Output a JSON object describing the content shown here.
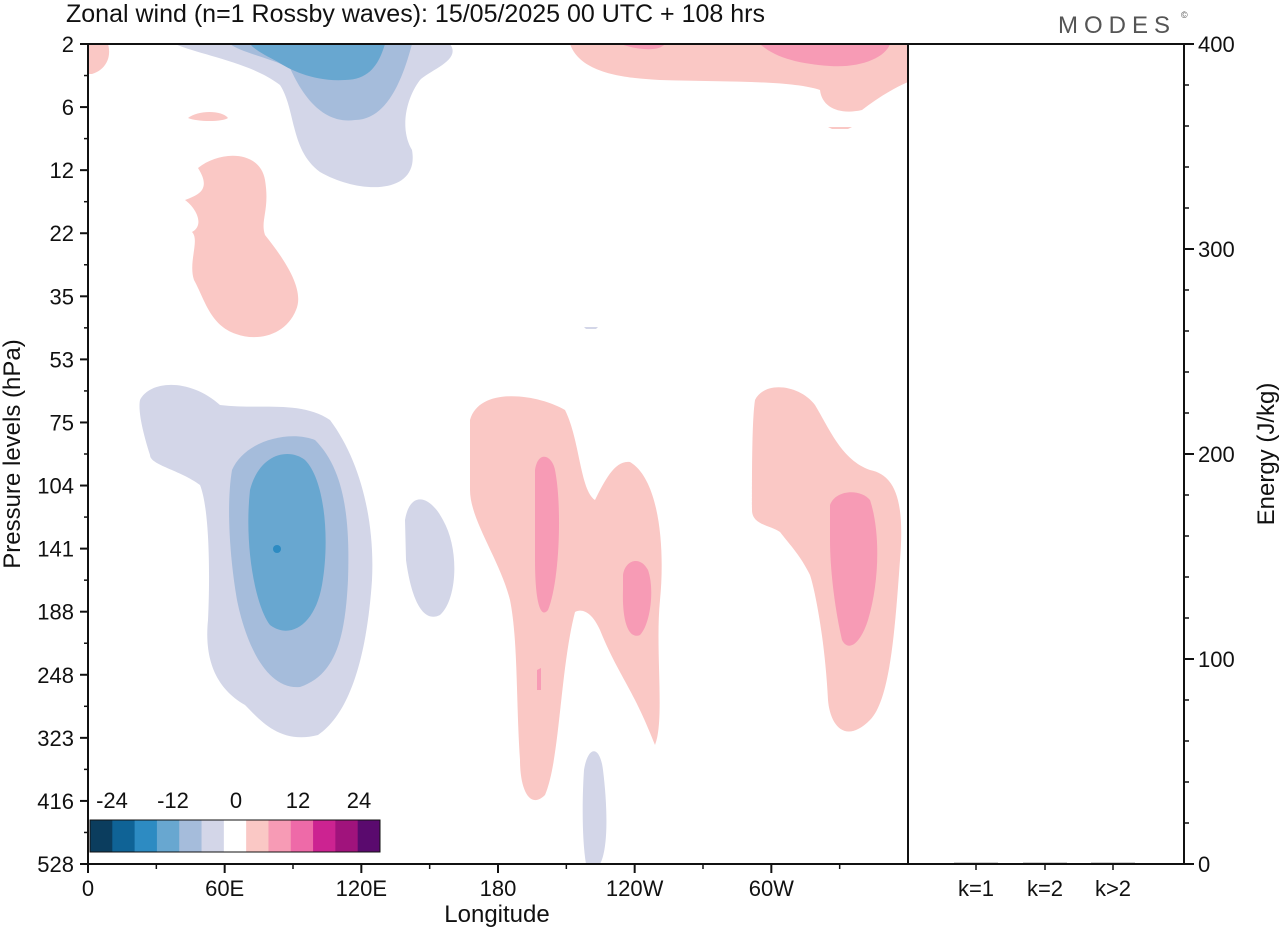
{
  "title": "Zonal wind (n=1 Rossby waves):  15/05/2025  00 UTC  + 108 hrs",
  "brand": "MODES",
  "brand_mark": "©",
  "chart_data": [
    {
      "type": "heatmap",
      "title": "Zonal wind (n=1 Rossby waves):  15/05/2025  00 UTC  + 108 hrs",
      "xlabel": "Longitude",
      "ylabel": "Pressure levels (hPa)",
      "x_ticks": [
        "0",
        "60E",
        "120E",
        "180",
        "120W",
        "60W"
      ],
      "x_tick_degrees": [
        0,
        60,
        120,
        180,
        240,
        300
      ],
      "xlim_degrees": [
        0,
        360
      ],
      "y_ticks": [
        "2",
        "6",
        "12",
        "22",
        "35",
        "53",
        "75",
        "104",
        "141",
        "188",
        "248",
        "323",
        "416",
        "528"
      ],
      "y_axis": "pressure levels, inverted (top = 2 hPa, bottom = 528 hPa)",
      "colorbar": {
        "labels": [
          "-24",
          "-12",
          "0",
          "12",
          "24"
        ],
        "colors": [
          "#0b3d5e",
          "#0f6396",
          "#2d8bc2",
          "#68a7d0",
          "#a5bcdb",
          "#d3d6e8",
          "#ffffff",
          "#fac8c5",
          "#f79bb5",
          "#ee6aa8",
          "#cc2391",
          "#a0137c",
          "#5a0a6e"
        ],
        "placement": "bottom-left inside plot"
      },
      "features": [
        {
          "sign": "negative",
          "peak_level": "-12",
          "location": "60E-130E, 2-12 hPa"
        },
        {
          "sign": "positive",
          "peak_level": "6",
          "location": "80E-120E, 12-45 hPa"
        },
        {
          "sign": "positive",
          "peak_level": "12",
          "location": "75W-0, 2-6 hPa"
        },
        {
          "sign": "negative",
          "peak_level": "-18",
          "location": "40E-125E, 65-330 hPa"
        },
        {
          "sign": "negative",
          "peak_level": "-6",
          "location": "140E-160E, 110-200 hPa"
        },
        {
          "sign": "positive",
          "peak_level": "12",
          "location": "170E-140W, 65-420 hPa"
        },
        {
          "sign": "positive",
          "peak_level": "12",
          "location": "130W-115W, 150-270 hPa"
        },
        {
          "sign": "positive",
          "peak_level": "12",
          "location": "75W-5W, 65-330 hPa"
        },
        {
          "sign": "negative",
          "peak_level": "-6",
          "location": "140W-135W, 330-528 hPa"
        }
      ]
    },
    {
      "type": "bar",
      "categories": [
        "k=1",
        "k=2",
        "k>2"
      ],
      "values": [
        0.5,
        0.2,
        0.4
      ],
      "ylabel": "Energy (J/kg)",
      "y_ticks": [
        "0",
        "100",
        "200",
        "300",
        "400"
      ],
      "ylim": [
        0,
        400
      ]
    }
  ]
}
